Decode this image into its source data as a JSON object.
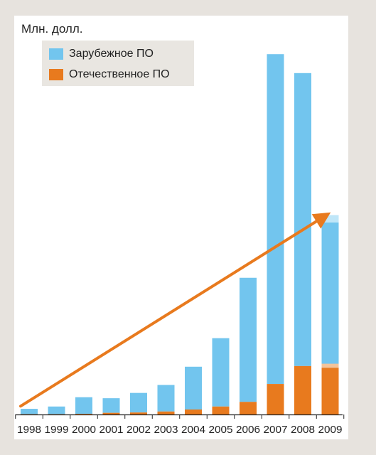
{
  "chart_data": {
    "type": "bar",
    "stacked": true,
    "ylabel": "Млн. долл.",
    "categories": [
      "1998",
      "1999",
      "2000",
      "2001",
      "2002",
      "2003",
      "2004",
      "2005",
      "2006",
      "2007",
      "2008",
      "2009"
    ],
    "series": [
      {
        "name": "Отечественное ПО",
        "color": "#e87a1e",
        "values": [
          1,
          1,
          2,
          5,
          6,
          9,
          15,
          24,
          38,
          92,
          146,
          141
        ]
      },
      {
        "name": "Зарубежное ПО",
        "color": "#72c5ee",
        "values": [
          16,
          23,
          50,
          44,
          59,
          80,
          129,
          206,
          374,
          994,
          883,
          438
        ]
      }
    ],
    "estimated_2009": {
      "orange": 12,
      "blue": 22,
      "colors": {
        "orange": "#f3c49a",
        "blue": "#bfe6f8"
      }
    },
    "trend_arrow": {
      "from": {
        "x": "1998",
        "y": 25
      },
      "to": {
        "x": "2009",
        "y": 600
      },
      "color": "#e87a1e"
    },
    "ylim": [
      0,
      1110
    ],
    "legend": {
      "position": "top-left"
    },
    "grid": false
  }
}
